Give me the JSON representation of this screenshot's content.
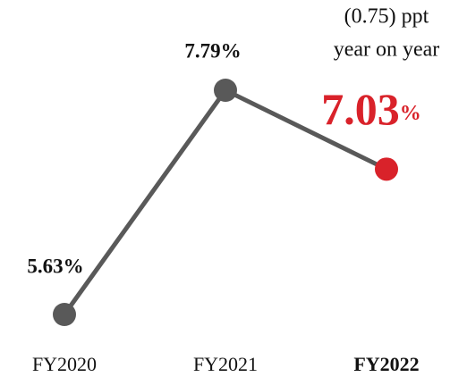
{
  "chart_data": {
    "type": "line",
    "categories": [
      "FY2020",
      "FY2021",
      "FY2022"
    ],
    "values": [
      5.63,
      7.79,
      7.03
    ],
    "value_labels": [
      "5.63%",
      "7.79%",
      "7.03%"
    ],
    "color": "#595959",
    "point_colors": [
      "#595959",
      "#595959",
      "#d9222a"
    ],
    "annotation": [
      "(0.75) ppt",
      "year on year"
    ]
  }
}
